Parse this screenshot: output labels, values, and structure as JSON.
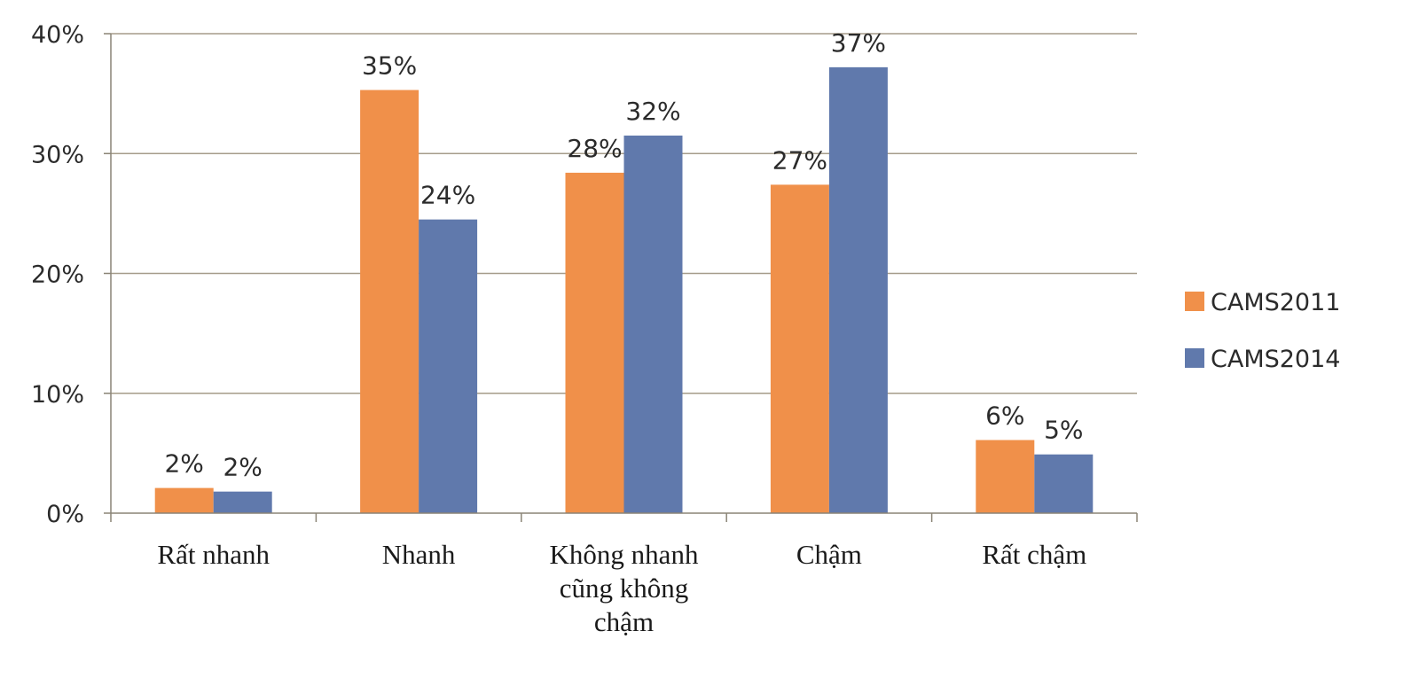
{
  "chart_data": {
    "type": "bar",
    "categories": [
      [
        "Rất nhanh"
      ],
      [
        "Nhanh"
      ],
      [
        "Không nhanh",
        "cũng không",
        "chậm"
      ],
      [
        "Chậm"
      ],
      [
        "Rất chậm"
      ]
    ],
    "series": [
      {
        "name": "CAMS2011",
        "color": "#f0904a",
        "values": [
          2.1,
          35.3,
          28.4,
          27.4,
          6.1
        ],
        "labels": [
          "2%",
          "35%",
          "28%",
          "27%",
          "6%"
        ]
      },
      {
        "name": "CAMS2014",
        "color": "#6079ac",
        "values": [
          1.8,
          24.5,
          31.5,
          37.2,
          4.9
        ],
        "labels": [
          "2%",
          "24%",
          "32%",
          "37%",
          "5%"
        ]
      }
    ],
    "yticks": [
      "0%",
      "10%",
      "20%",
      "30%",
      "40%"
    ],
    "ylim": [
      0,
      40
    ],
    "grid": true,
    "legend_position": "right",
    "title": "",
    "xlabel": "",
    "ylabel": ""
  }
}
